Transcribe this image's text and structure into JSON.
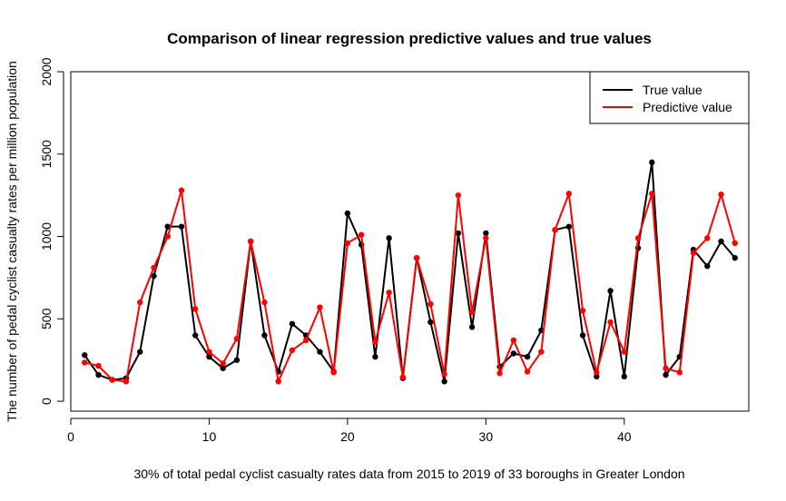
{
  "chart_data": {
    "type": "line",
    "title": "Comparison of linear regression predictive values and true values",
    "xlabel": "30% of total pedal cyclist casualty rates data from 2015 to 2019 of 33 boroughs in Greater London",
    "ylabel": "The number of pedal cyclist casualty rates per million population",
    "xlim": [
      0,
      49
    ],
    "ylim": [
      -60,
      2000
    ],
    "x_ticks": [
      0,
      10,
      20,
      30,
      40
    ],
    "y_ticks": [
      0,
      500,
      1000,
      1500,
      2000
    ],
    "grid": false,
    "legend_position": "top-right",
    "x": [
      1,
      2,
      3,
      4,
      5,
      6,
      7,
      8,
      9,
      10,
      11,
      12,
      13,
      14,
      15,
      16,
      17,
      18,
      19,
      20,
      21,
      22,
      23,
      24,
      25,
      26,
      27,
      28,
      29,
      30,
      31,
      32,
      33,
      34,
      35,
      36,
      37,
      38,
      39,
      40,
      41,
      42,
      43,
      44,
      45,
      46,
      47,
      48
    ],
    "series": [
      {
        "name": "True value",
        "color": "#000000",
        "values": [
          280,
          160,
          130,
          140,
          300,
          760,
          1060,
          1060,
          400,
          270,
          200,
          250,
          970,
          400,
          180,
          470,
          400,
          300,
          180,
          1140,
          950,
          270,
          990,
          140,
          870,
          480,
          120,
          1020,
          450,
          1020,
          210,
          290,
          270,
          430,
          1040,
          1060,
          400,
          150,
          670,
          150,
          930,
          1450,
          160,
          270,
          920,
          820,
          970,
          870
        ]
      },
      {
        "name": "Predictive value",
        "color": "#ff0000",
        "values": [
          235,
          215,
          130,
          120,
          600,
          810,
          1000,
          1280,
          560,
          300,
          230,
          380,
          970,
          600,
          120,
          310,
          370,
          570,
          175,
          960,
          1010,
          360,
          660,
          145,
          870,
          590,
          165,
          1250,
          540,
          990,
          170,
          370,
          180,
          300,
          1040,
          1260,
          550,
          175,
          480,
          300,
          990,
          1260,
          200,
          175,
          900,
          990,
          1255,
          960
        ]
      }
    ]
  }
}
